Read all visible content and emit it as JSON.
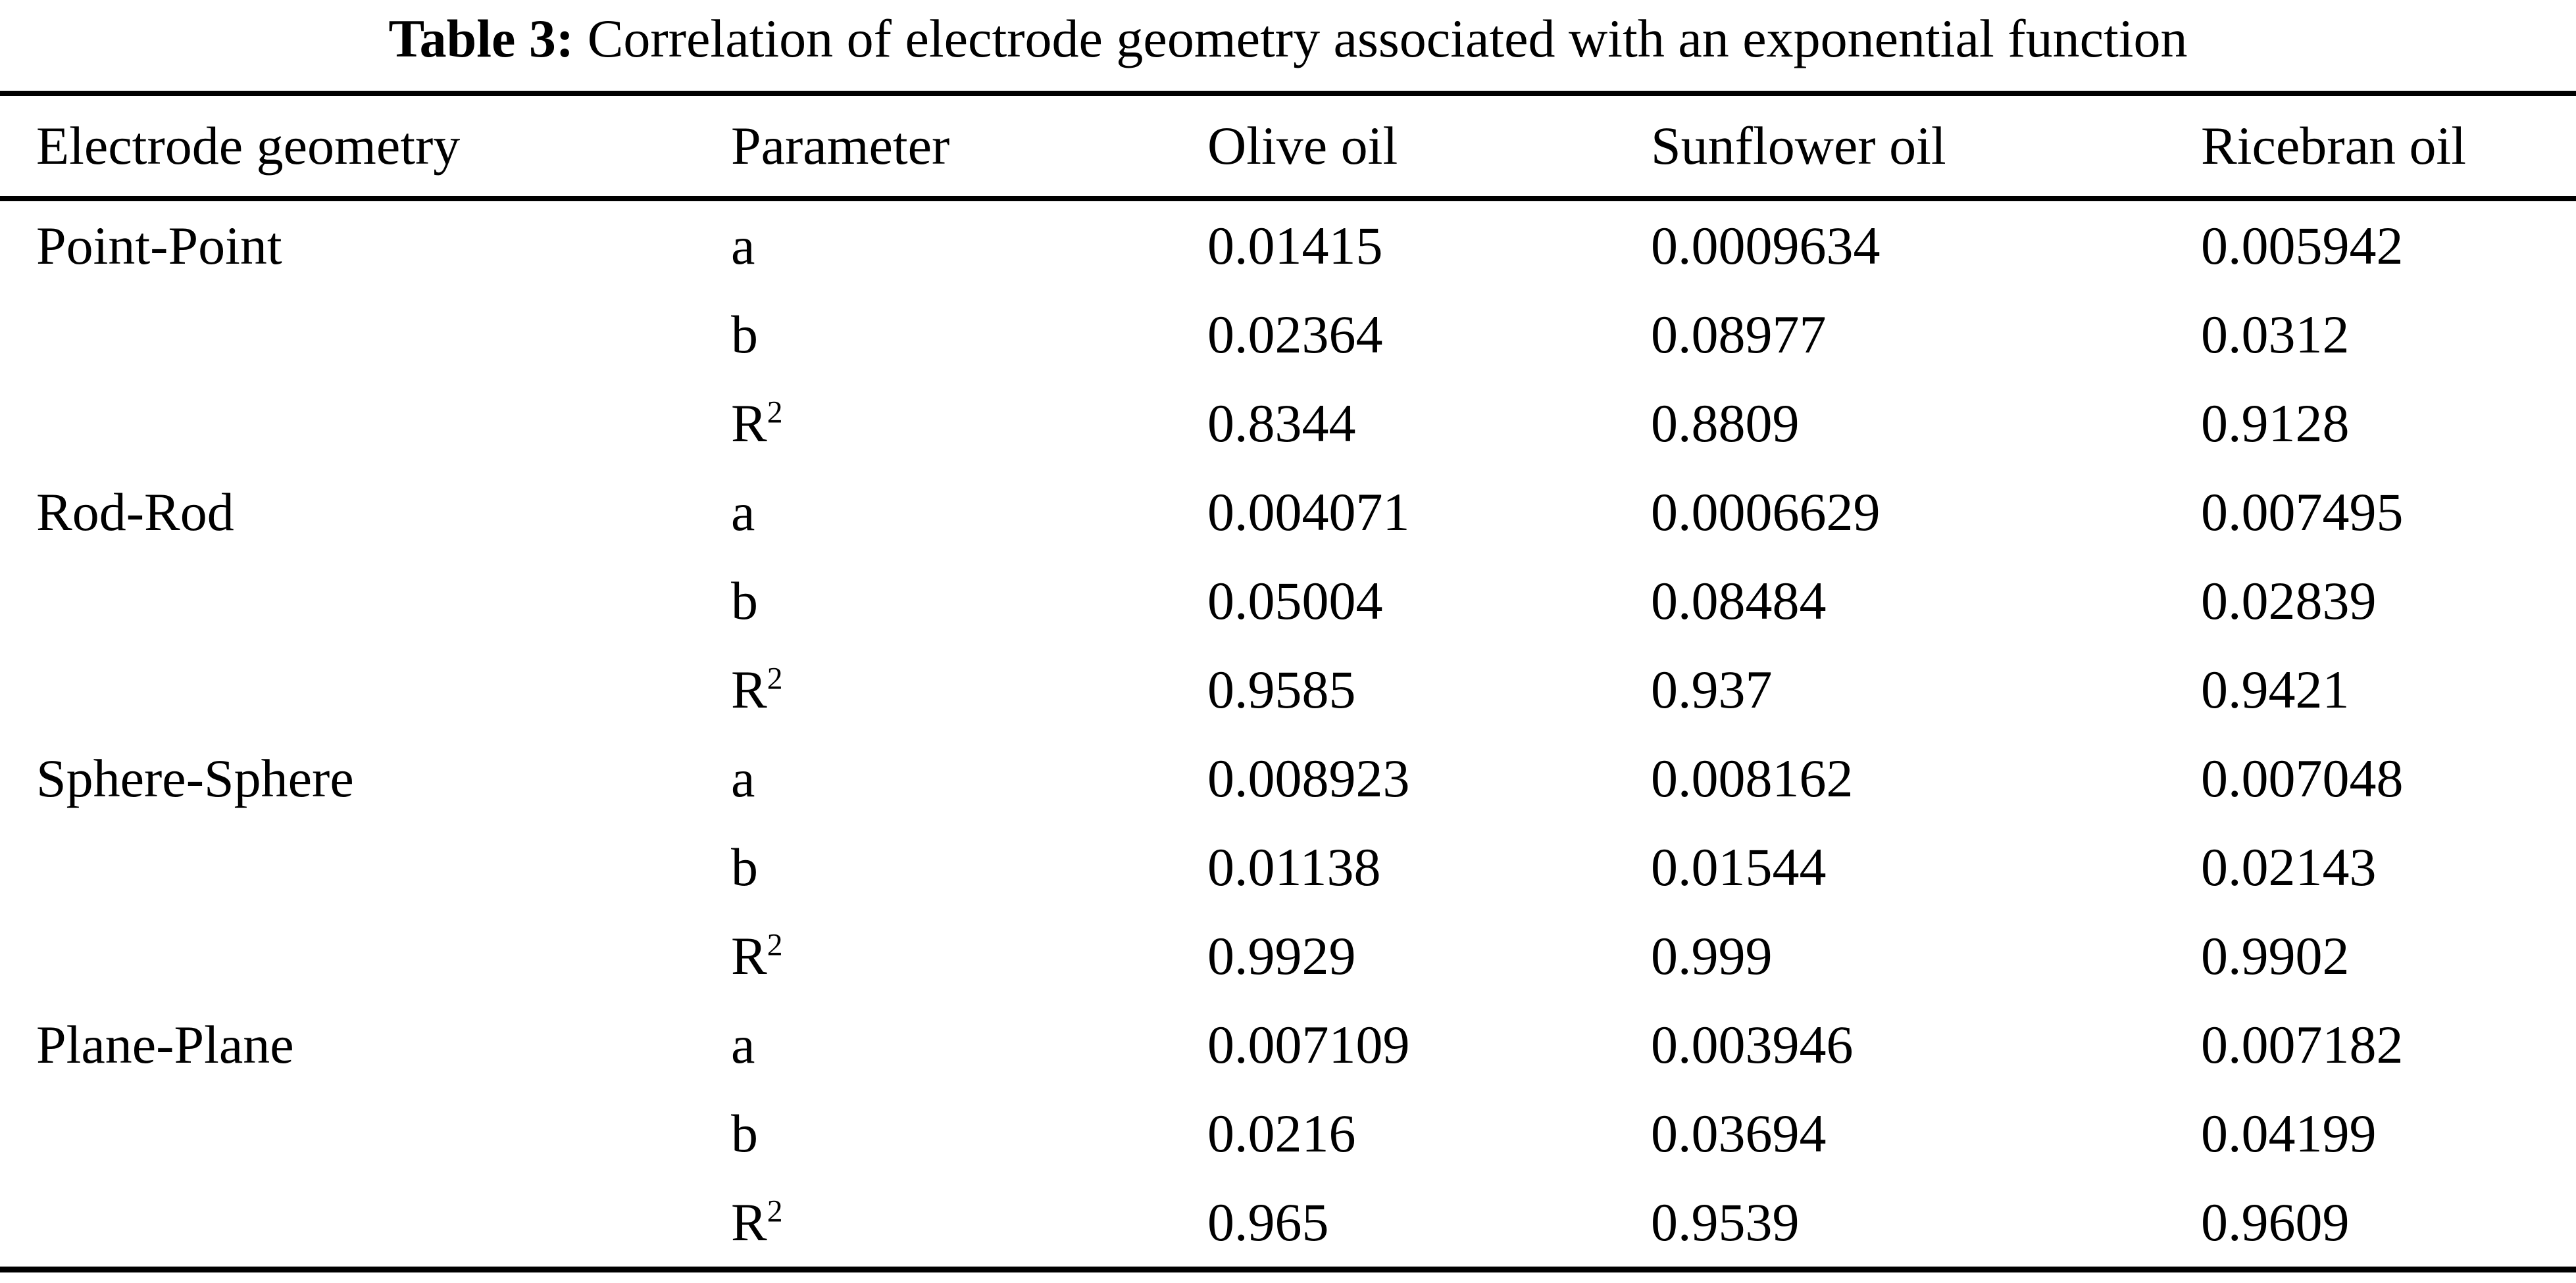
{
  "title": {
    "label": "Table 3:",
    "text": "Correlation of electrode geometry associated with an exponential function"
  },
  "colors": {
    "text": "#000000",
    "background": "#ffffff",
    "rule": "#000000"
  },
  "table": {
    "columns": [
      "Electrode geometry",
      "Parameter",
      "Olive oil",
      "Sunflower oil",
      "Ricebran oil"
    ],
    "groups": [
      {
        "geometry": "Point-Point",
        "rows": [
          {
            "param": "a",
            "sup": "",
            "olive": "0.01415",
            "sunflower": "0.0009634",
            "ricebran": "0.005942"
          },
          {
            "param": "b",
            "sup": "",
            "olive": "0.02364",
            "sunflower": "0.08977",
            "ricebran": "0.0312"
          },
          {
            "param": "R",
            "sup": "2",
            "olive": "0.8344",
            "sunflower": "0.8809",
            "ricebran": "0.9128"
          }
        ]
      },
      {
        "geometry": "Rod-Rod",
        "rows": [
          {
            "param": "a",
            "sup": "",
            "olive": "0.004071",
            "sunflower": "0.0006629",
            "ricebran": "0.007495"
          },
          {
            "param": "b",
            "sup": "",
            "olive": "0.05004",
            "sunflower": "0.08484",
            "ricebran": "0.02839"
          },
          {
            "param": "R",
            "sup": "2",
            "olive": "0.9585",
            "sunflower": "0.937",
            "ricebran": "0.9421"
          }
        ]
      },
      {
        "geometry": "Sphere-Sphere",
        "rows": [
          {
            "param": "a",
            "sup": "",
            "olive": "0.008923",
            "sunflower": "0.008162",
            "ricebran": "0.007048"
          },
          {
            "param": "b",
            "sup": "",
            "olive": "0.01138",
            "sunflower": "0.01544",
            "ricebran": "0.02143"
          },
          {
            "param": "R",
            "sup": "2",
            "olive": "0.9929",
            "sunflower": "0.999",
            "ricebran": "0.9902"
          }
        ]
      },
      {
        "geometry": "Plane-Plane",
        "rows": [
          {
            "param": "a",
            "sup": "",
            "olive": "0.007109",
            "sunflower": "0.003946",
            "ricebran": "0.007182"
          },
          {
            "param": "b",
            "sup": "",
            "olive": "0.0216",
            "sunflower": "0.03694",
            "ricebran": "0.04199"
          },
          {
            "param": "R",
            "sup": "2",
            "olive": "0.965",
            "sunflower": "0.9539",
            "ricebran": "0.9609"
          }
        ]
      }
    ]
  }
}
